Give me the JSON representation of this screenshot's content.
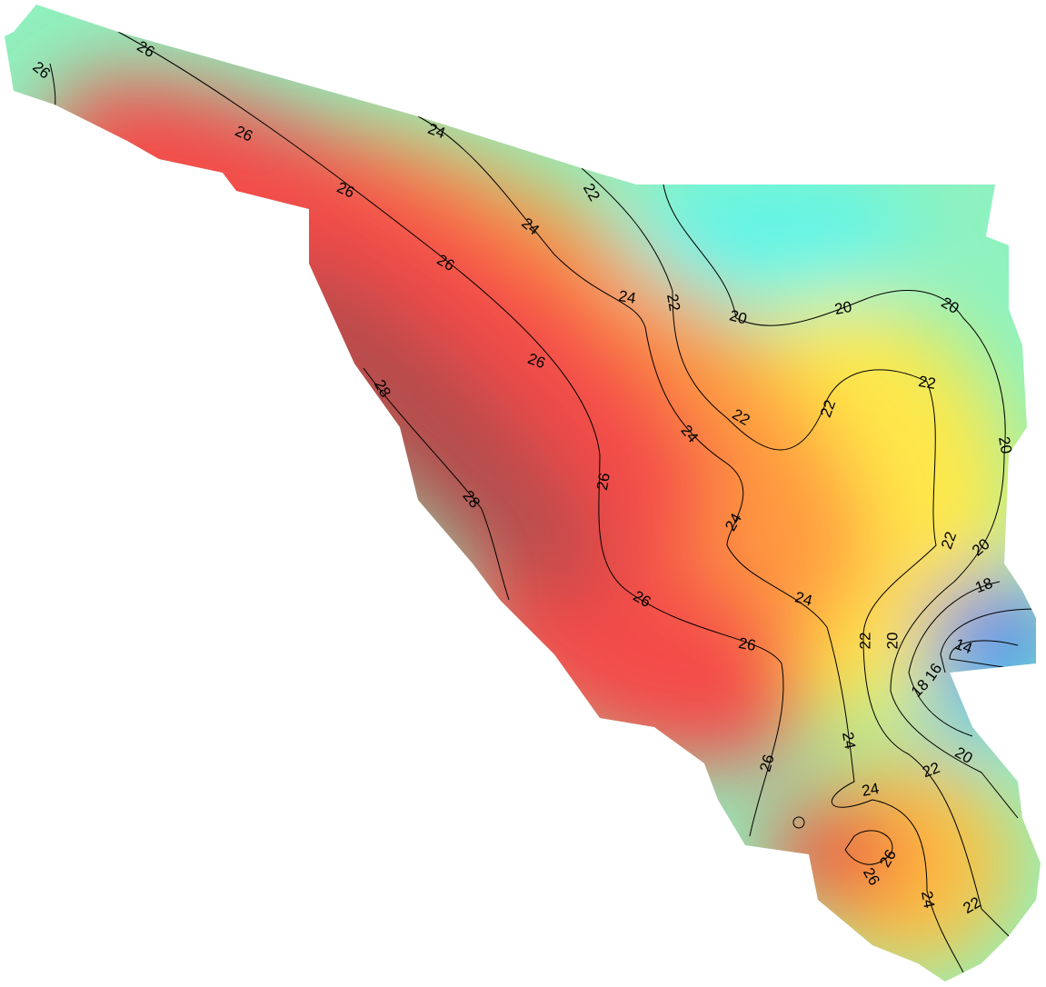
{
  "contour_labels": [
    "26",
    "26",
    "26",
    "26",
    "26",
    "26",
    "26",
    "26",
    "26",
    "26",
    "26",
    "26",
    "24",
    "24",
    "24",
    "24",
    "24",
    "24",
    "24",
    "24",
    "24",
    "22",
    "22",
    "22",
    "22",
    "22",
    "22",
    "22",
    "22",
    "22",
    "20",
    "20",
    "20",
    "20",
    "20",
    "20",
    "20",
    "18",
    "18",
    "16",
    "14",
    "28",
    "28"
  ]
}
